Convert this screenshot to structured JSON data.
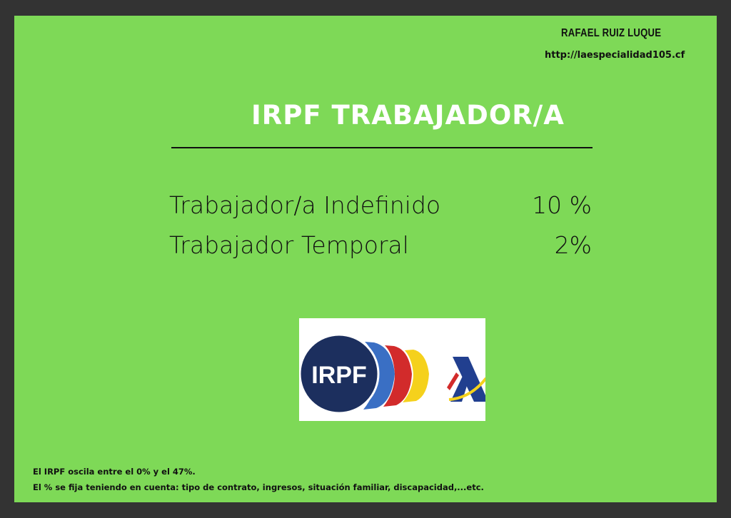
{
  "header": {
    "author": "RAFAEL RUIZ LUQUE",
    "url": "http://laespecialidad105.cf"
  },
  "title": "IRPF TRABAJADOR/A",
  "rows": [
    {
      "label": "Trabajador/a Indefinido",
      "value": "10 %"
    },
    {
      "label": "Trabajador Temporal",
      "value": "2%"
    }
  ],
  "logo": {
    "text": "IRPF",
    "colors": {
      "circle": "#1c2f5e",
      "blue": "#3a6fc4",
      "red": "#d22b2b",
      "yellow": "#f5d11c",
      "navy": "#213f8f"
    }
  },
  "footer": [
    "El IRPF oscila entre el 0% y el 47%.",
    "El % se fija teniendo en cuenta: tipo de contrato, ingresos, situación familiar, discapacidad,...etc."
  ],
  "colors": {
    "background": "#7ed957",
    "frame": "#333333"
  }
}
